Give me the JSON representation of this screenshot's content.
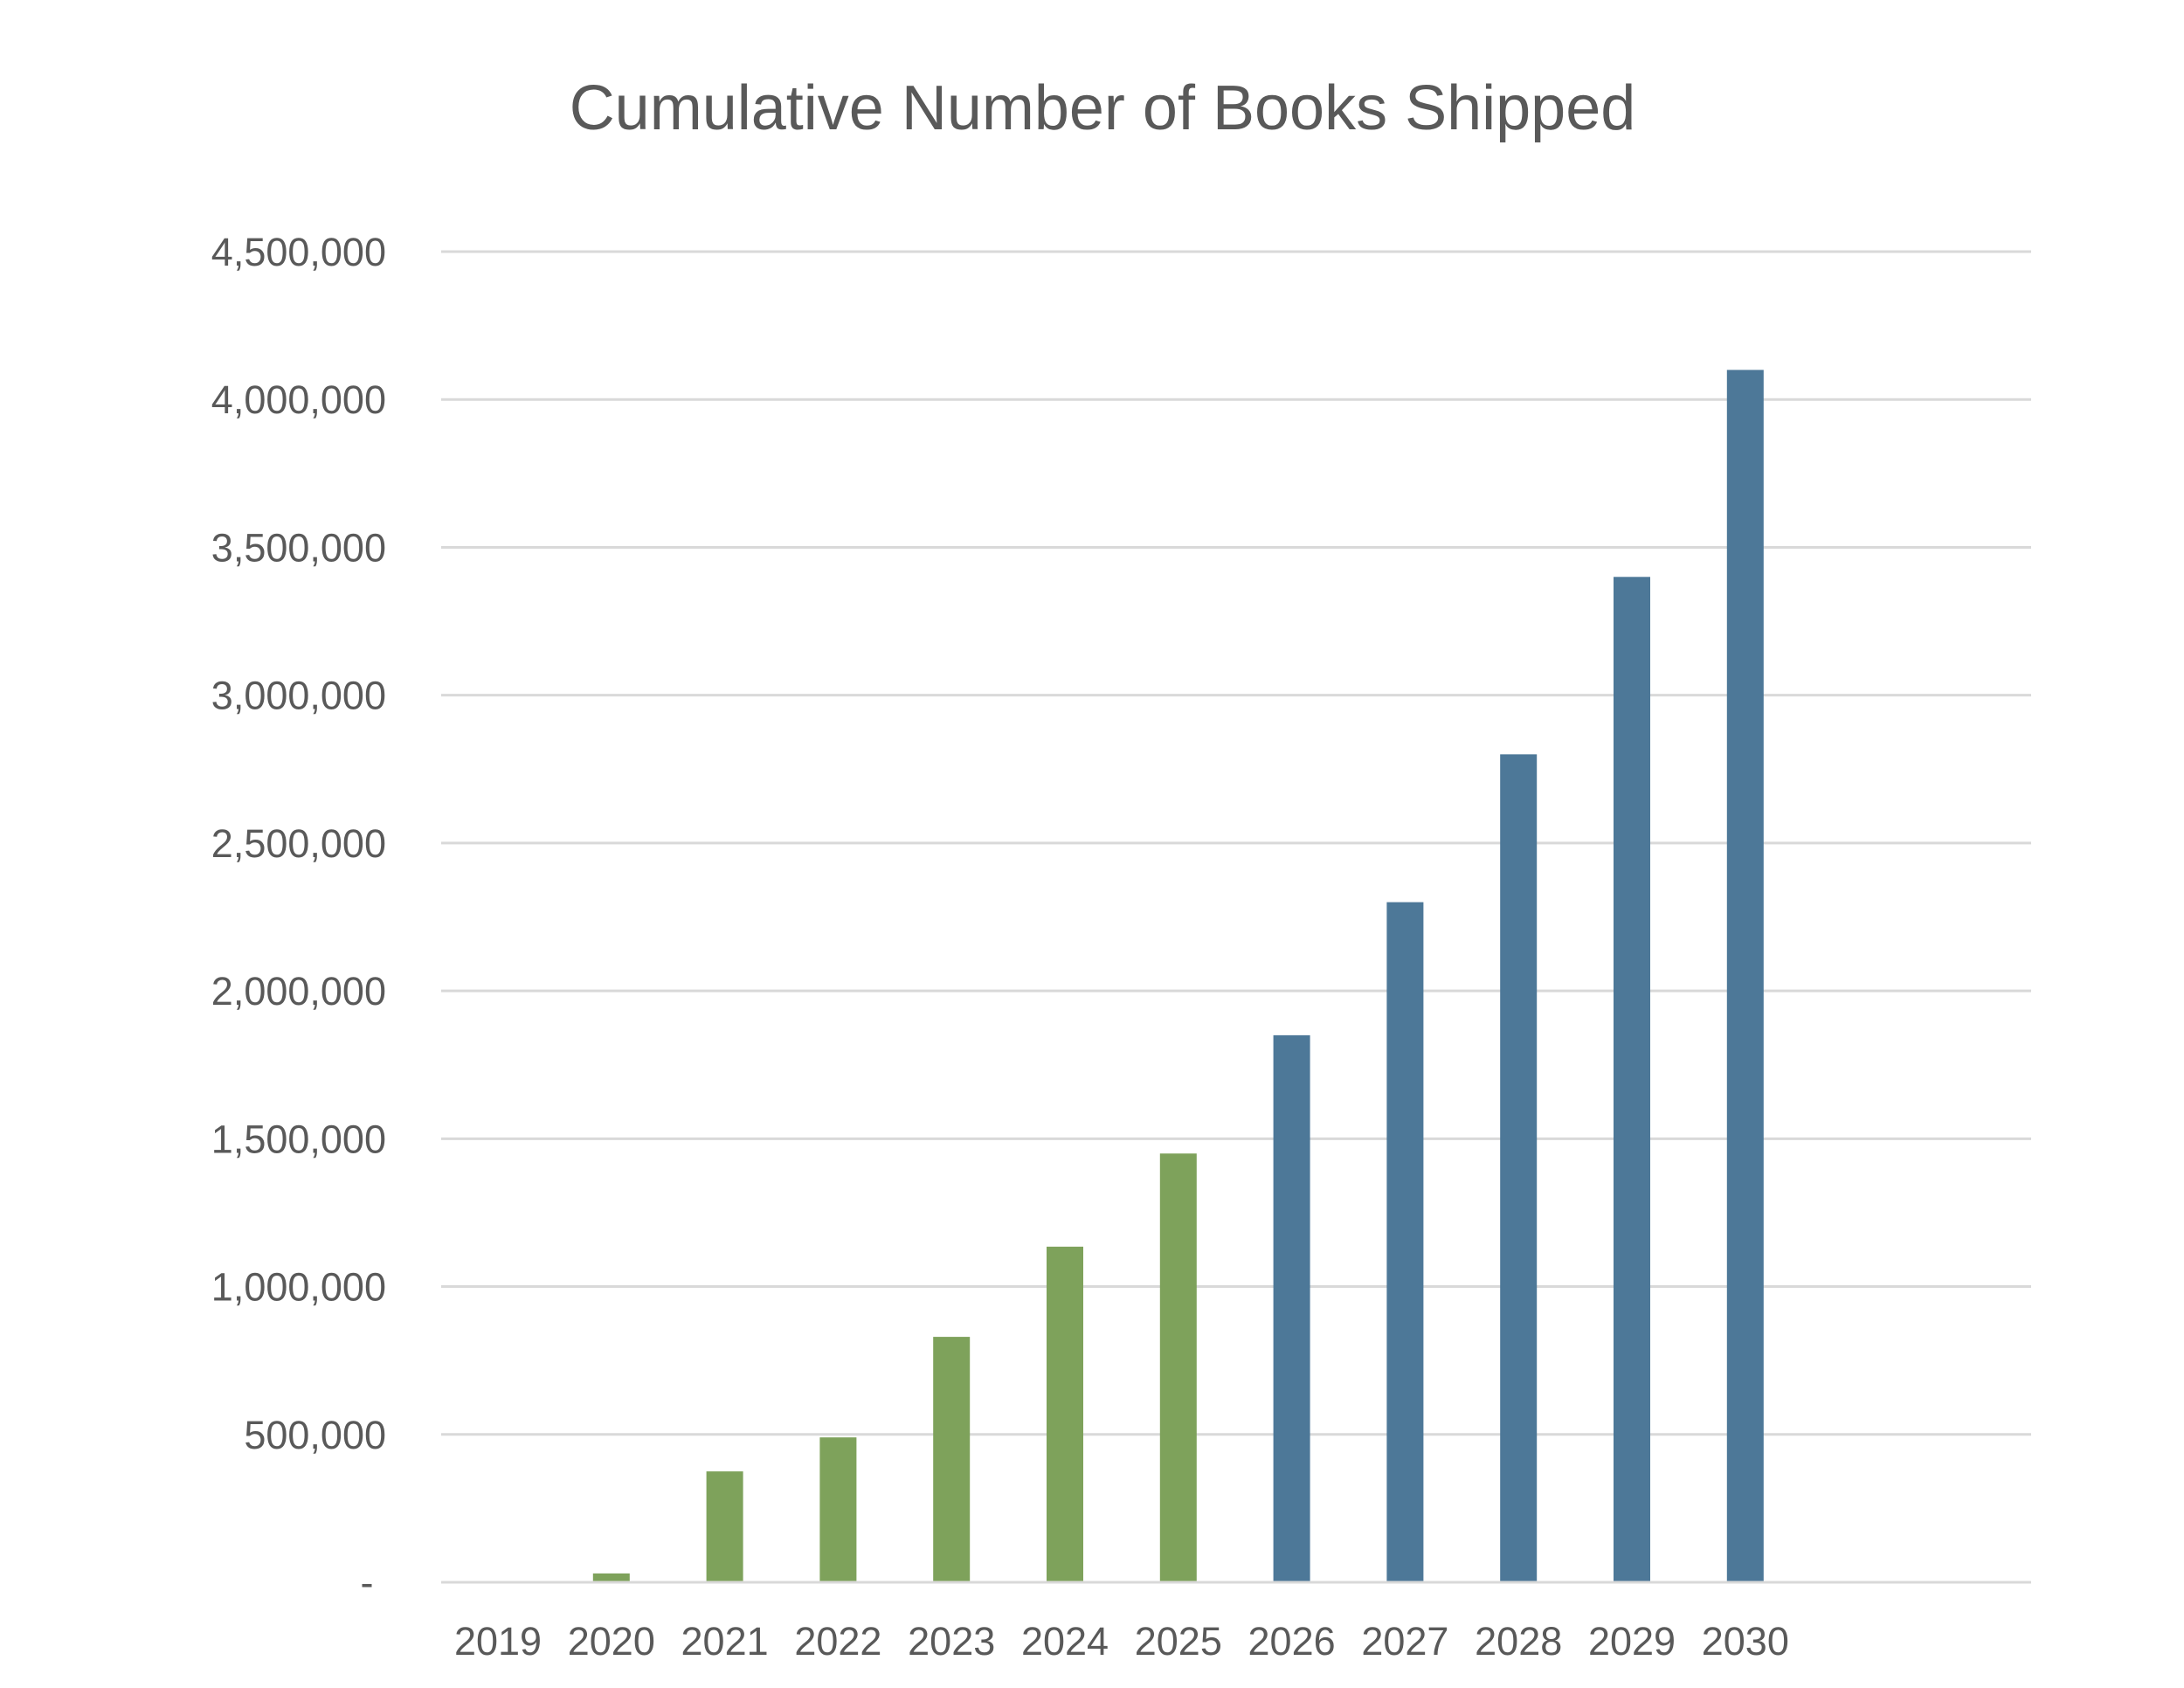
{
  "chart_data": {
    "type": "bar",
    "title": "Cumulative Number of Books Shipped",
    "xlabel": "",
    "ylabel": "",
    "categories": [
      "2019",
      "2020",
      "2021",
      "2022",
      "2023",
      "2024",
      "2025",
      "2026",
      "2027",
      "2028",
      "2029",
      "2030"
    ],
    "values": [
      0,
      30000,
      375000,
      490000,
      830000,
      1135000,
      1450000,
      1850000,
      2300000,
      2800000,
      3400000,
      4100000
    ],
    "bar_colors": [
      "#7ea25b",
      "#7ea25b",
      "#7ea25b",
      "#7ea25b",
      "#7ea25b",
      "#7ea25b",
      "#7ea25b",
      "#4d7898",
      "#4d7898",
      "#4d7898",
      "#4d7898",
      "#4d7898"
    ],
    "ylim": [
      0,
      4500000
    ],
    "yticks": [
      {
        "value": 0,
        "label": "-"
      },
      {
        "value": 500000,
        "label": "500,000"
      },
      {
        "value": 1000000,
        "label": "1,000,000"
      },
      {
        "value": 1500000,
        "label": "1,500,000"
      },
      {
        "value": 2000000,
        "label": "2,000,000"
      },
      {
        "value": 2500000,
        "label": "2,500,000"
      },
      {
        "value": 3000000,
        "label": "3,000,000"
      },
      {
        "value": 3500000,
        "label": "3,500,000"
      },
      {
        "value": 4000000,
        "label": "4,000,000"
      },
      {
        "value": 4500000,
        "label": "4,500,000"
      }
    ],
    "grid": true,
    "legend": "none"
  }
}
